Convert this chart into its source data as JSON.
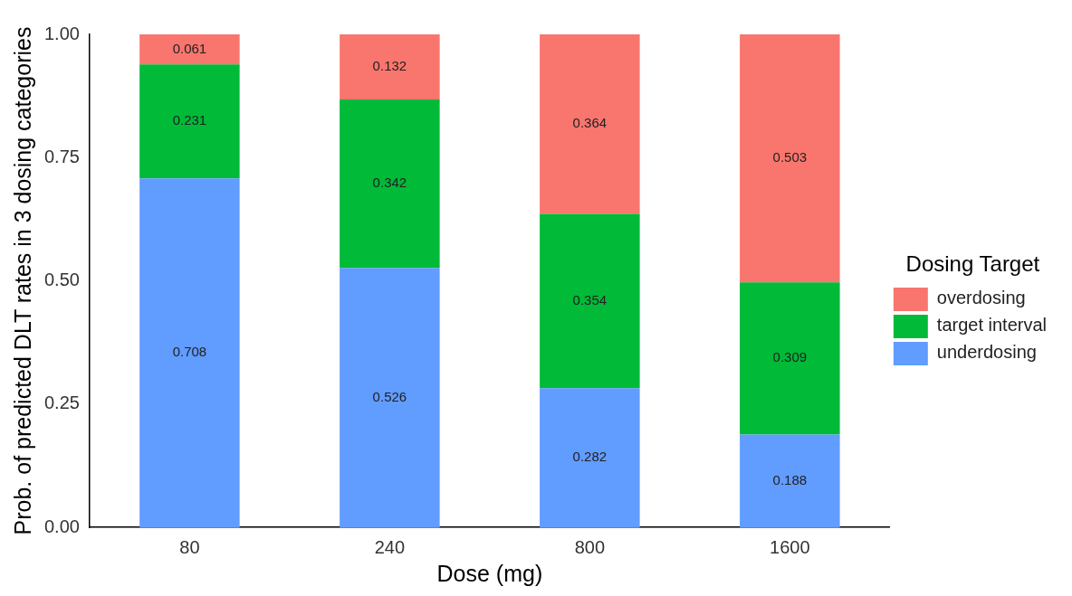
{
  "chart_data": {
    "type": "bar",
    "xlabel": "Dose (mg)",
    "ylabel": "Prob. of predicted DLT rates in 3 dosing categories",
    "legend_title": "Dosing Target",
    "categories": [
      "80",
      "240",
      "800",
      "1600"
    ],
    "series": [
      {
        "name": "underdosing",
        "color": "#619cff",
        "values": [
          0.708,
          0.526,
          0.282,
          0.188
        ]
      },
      {
        "name": "target interval",
        "color": "#00ba38",
        "values": [
          0.231,
          0.342,
          0.354,
          0.309
        ]
      },
      {
        "name": "overdosing",
        "color": "#f8766d",
        "values": [
          0.061,
          0.132,
          0.364,
          0.503
        ]
      }
    ],
    "stacked": true,
    "data_labels": true,
    "grid": false,
    "legend": "right",
    "ylim": [
      0,
      1
    ],
    "yticks": [
      {
        "value": 0,
        "label": "0.00"
      },
      {
        "value": 0.25,
        "label": "0.25"
      },
      {
        "value": 0.5,
        "label": "0.50"
      },
      {
        "value": 0.75,
        "label": "0.75"
      },
      {
        "value": 1,
        "label": "1.00"
      }
    ]
  }
}
